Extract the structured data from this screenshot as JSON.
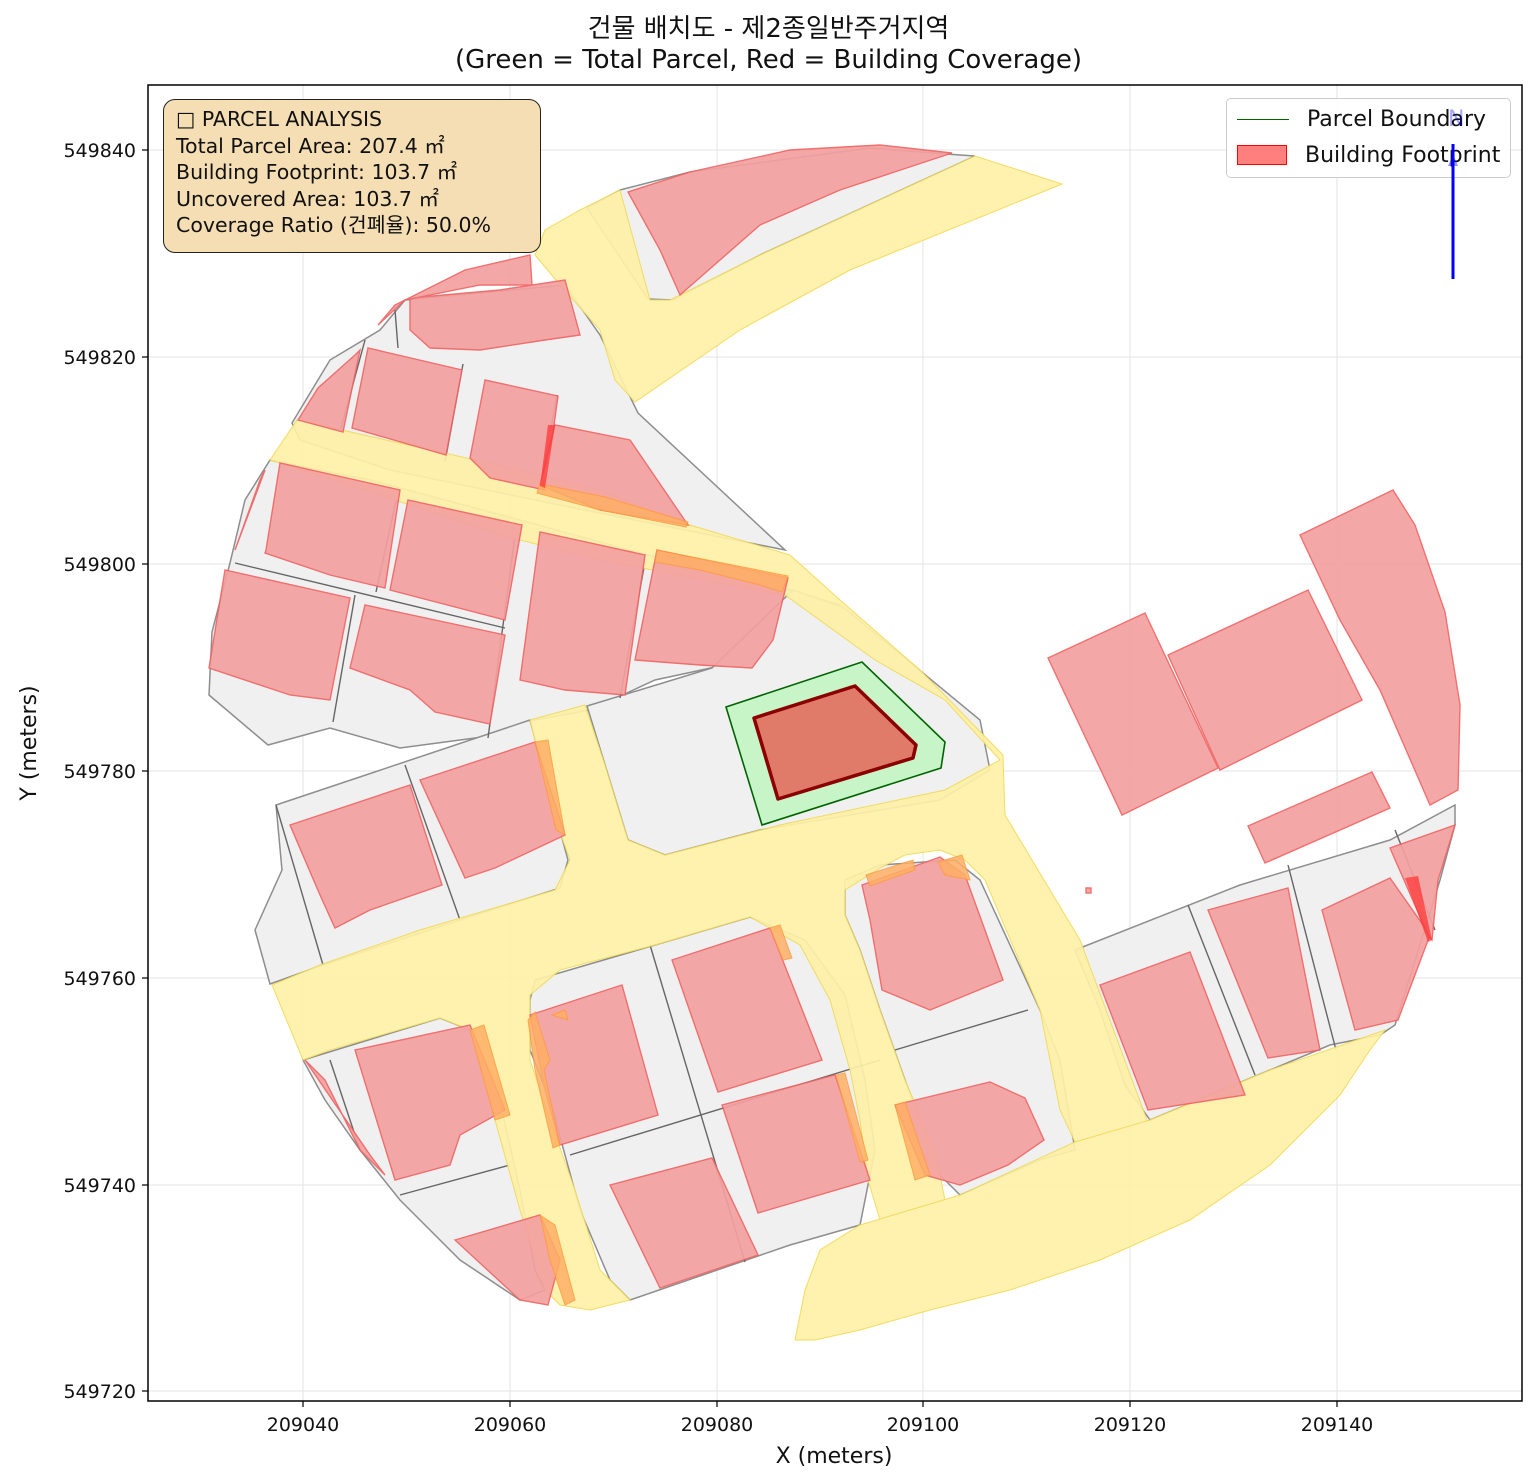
{
  "title": {
    "line1": "건물 배치도 - 제2종일반주거지역",
    "line2": "(Green = Total Parcel, Red = Building Coverage)"
  },
  "axes": {
    "xlabel": "X (meters)",
    "ylabel": "Y (meters)",
    "xticks": [
      "209040",
      "209060",
      "209080",
      "209100",
      "209120",
      "209140"
    ],
    "yticks": [
      "549840",
      "549820",
      "549800",
      "549780",
      "549760",
      "549740",
      "549720"
    ]
  },
  "info_box": {
    "heading": "□ PARCEL ANALYSIS",
    "total_parcel_area": "Total Parcel Area: 207.4 ㎡",
    "building_footprint": "Building Footprint: 103.7 ㎡",
    "uncovered_area": "Uncovered Area: 103.7 ㎡",
    "coverage_ratio": "Coverage Ratio (건폐율): 50.0%"
  },
  "legend": {
    "parcel_boundary": "Parcel Boundary",
    "building_footprint": "Building Footprint"
  },
  "north_arrow_label": "N",
  "colors": {
    "parcel_fill": "#c8f5c8",
    "parcel_edge": "#006400",
    "building_fill": "#e07b6a",
    "building_edge": "#8b0000",
    "context_building": "#f4a0a0",
    "road": "#fff0a8",
    "lot": "#f0f0f0",
    "north": "#0000ff"
  }
}
